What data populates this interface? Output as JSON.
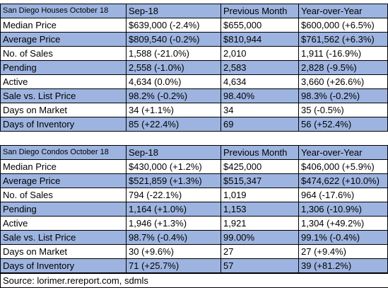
{
  "tables": [
    {
      "header": [
        "San Diego Houses October 18",
        "Sep-18",
        "Previous Month",
        "Year-over-Year"
      ],
      "rows": [
        [
          "Median Price",
          "$639,000 (-2.4%)",
          "$655,000",
          "$600,000 (+6.5%)"
        ],
        [
          "Average Price",
          "$809,540 (-0.2%)",
          "$810,944",
          "$761,562 (+6.3%)"
        ],
        [
          "No. of Sales",
          "1,588 (-21.0%)",
          "2,010",
          "1,911 (-16.9%)"
        ],
        [
          "Pending",
          "2,558 (-1.0%)",
          "2,583",
          "2,828 (-9.5%)"
        ],
        [
          "Active",
          "4,634 (0.0%)",
          "4,634",
          "3,660 (+26.6%)"
        ],
        [
          "Sale vs. List Price",
          "98.2% (-0.2%)",
          "98.40%",
          "98.3% (-0.2%)"
        ],
        [
          "Days on Market",
          "34 (+1.1%)",
          "34",
          "35 (-0.5%)"
        ],
        [
          "Days of Inventory",
          "85 (+22.4%)",
          "69",
          "56 (+52.4%)"
        ]
      ]
    },
    {
      "header": [
        "San Diego Condos October 18",
        "Sep-18",
        "Previous Month",
        "Year-over-Year"
      ],
      "rows": [
        [
          "Median Price",
          "$430,000 (+1.2%)",
          "$425,000",
          "$406,000 (+5.9%)"
        ],
        [
          "Average Price",
          "$521,859 (+1.3%)",
          "$515,347",
          "$474,622 (+10.0%)"
        ],
        [
          "No. of Sales",
          "794 (-22.1%)",
          "1,019",
          "964 (-17.6%)"
        ],
        [
          "Pending",
          "1,164 (+1.0%)",
          "1,153",
          "1,306 (-10.9%)"
        ],
        [
          "Active",
          "1,946 (+1.3%)",
          "1,921",
          "1,304 (+49.2%)"
        ],
        [
          "Sale vs. List Price",
          "98.7% (-0.4%)",
          "99.00%",
          "99.1% (-0.4%)"
        ],
        [
          "Days on Market",
          "30 (+9.6%)",
          "27",
          "27 (+9.4%)"
        ],
        [
          "Days of Inventory",
          "71 (+25.7%)",
          "57",
          "39 (+81.2%)"
        ]
      ]
    }
  ],
  "source": "Source: lorimer.rereport.com, sdmls"
}
